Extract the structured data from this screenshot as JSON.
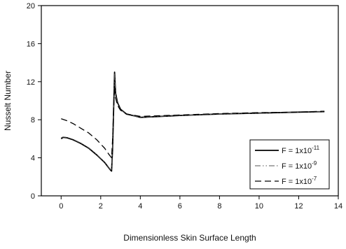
{
  "chart_data": {
    "type": "line",
    "title": "",
    "xlabel": "Dimensionless Skin Surface Length",
    "ylabel": "Nusselt Number",
    "xlim": [
      -1,
      14
    ],
    "ylim": [
      0,
      20
    ],
    "xticks": [
      0,
      2,
      4,
      6,
      8,
      10,
      12,
      14
    ],
    "yticks": [
      0,
      4,
      8,
      12,
      16,
      20
    ],
    "grid": false,
    "legend_position": "bottom-right",
    "series": [
      {
        "name": "F = 1x10",
        "exponent": "-11",
        "style": "solid",
        "color": "#000000",
        "points": [
          [
            0.0,
            6.0
          ],
          [
            0.1,
            6.15
          ],
          [
            0.3,
            6.1
          ],
          [
            0.6,
            5.9
          ],
          [
            1.0,
            5.5
          ],
          [
            1.4,
            5.0
          ],
          [
            1.8,
            4.3
          ],
          [
            2.2,
            3.5
          ],
          [
            2.5,
            2.7
          ],
          [
            2.55,
            2.6
          ],
          [
            2.6,
            5.0
          ],
          [
            2.65,
            9.0
          ],
          [
            2.7,
            13.0
          ],
          [
            2.75,
            10.8
          ],
          [
            2.85,
            9.8
          ],
          [
            3.0,
            9.1
          ],
          [
            3.3,
            8.6
          ],
          [
            4.0,
            8.25
          ],
          [
            6.0,
            8.45
          ],
          [
            8.0,
            8.6
          ],
          [
            10.0,
            8.7
          ],
          [
            12.0,
            8.8
          ],
          [
            13.3,
            8.85
          ]
        ]
      },
      {
        "name": "F = 1x10",
        "exponent": "-9",
        "style": "dash-dot-dot",
        "color": "#555555",
        "points": [
          [
            0.0,
            6.1
          ],
          [
            0.1,
            6.2
          ],
          [
            0.3,
            6.15
          ],
          [
            0.6,
            5.95
          ],
          [
            1.0,
            5.55
          ],
          [
            1.4,
            5.05
          ],
          [
            1.8,
            4.35
          ],
          [
            2.2,
            3.55
          ],
          [
            2.5,
            2.75
          ],
          [
            2.55,
            2.65
          ],
          [
            2.6,
            5.1
          ],
          [
            2.65,
            9.1
          ],
          [
            2.7,
            12.8
          ],
          [
            2.75,
            10.7
          ],
          [
            2.85,
            9.7
          ],
          [
            3.0,
            9.05
          ],
          [
            3.3,
            8.55
          ],
          [
            4.0,
            8.25
          ],
          [
            6.0,
            8.45
          ],
          [
            8.0,
            8.6
          ],
          [
            10.0,
            8.7
          ],
          [
            12.0,
            8.8
          ],
          [
            13.3,
            8.85
          ]
        ]
      },
      {
        "name": "F = 1x10",
        "exponent": "-7",
        "style": "dashed",
        "color": "#000000",
        "points": [
          [
            0.0,
            8.1
          ],
          [
            0.3,
            7.9
          ],
          [
            0.6,
            7.6
          ],
          [
            1.0,
            7.1
          ],
          [
            1.4,
            6.6
          ],
          [
            1.8,
            5.9
          ],
          [
            2.2,
            5.0
          ],
          [
            2.4,
            4.4
          ],
          [
            2.55,
            4.0
          ],
          [
            2.6,
            6.0
          ],
          [
            2.65,
            9.0
          ],
          [
            2.7,
            11.5
          ],
          [
            2.75,
            10.3
          ],
          [
            2.85,
            9.5
          ],
          [
            3.0,
            9.0
          ],
          [
            3.3,
            8.6
          ],
          [
            4.0,
            8.35
          ],
          [
            6.0,
            8.5
          ],
          [
            8.0,
            8.65
          ],
          [
            10.0,
            8.75
          ],
          [
            12.0,
            8.8
          ],
          [
            13.3,
            8.9
          ]
        ]
      }
    ]
  }
}
